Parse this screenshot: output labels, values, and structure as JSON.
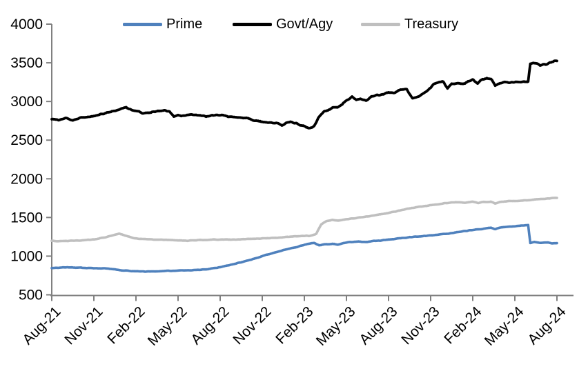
{
  "chart_data": {
    "type": "line",
    "title": "",
    "background": "#FFFFFF",
    "text_color": "#000000",
    "axis_color": "#808080",
    "legend": {
      "position": "top"
    },
    "x_axis": {
      "unit": "months since Aug-21",
      "range_months": [
        0,
        36
      ],
      "tick_positions_months": [
        0,
        3,
        6,
        9,
        12,
        15,
        18,
        21,
        24,
        27,
        30,
        33,
        36
      ],
      "tick_labels": [
        "Aug-21",
        "Nov-21",
        "Feb-22",
        "May-22",
        "Aug-22",
        "Nov-22",
        "Feb-23",
        "May-23",
        "Aug-23",
        "Nov-23",
        "Feb-24",
        "May-24",
        "Aug-24"
      ]
    },
    "y_axis": {
      "min": 500,
      "max": 4000,
      "tick_step": 500,
      "tick_labels": [
        "500",
        "1000",
        "1500",
        "2000",
        "2500",
        "3000",
        "3500",
        "4000"
      ]
    },
    "series": [
      {
        "name": "Prime",
        "color": "#4F81BD",
        "points": [
          [
            0,
            848
          ],
          [
            1,
            855
          ],
          [
            2,
            850
          ],
          [
            3,
            845
          ],
          [
            4,
            840
          ],
          [
            4.5,
            830
          ],
          [
            5,
            815
          ],
          [
            6,
            805
          ],
          [
            7,
            800
          ],
          [
            8,
            808
          ],
          [
            9,
            813
          ],
          [
            10,
            818
          ],
          [
            11,
            828
          ],
          [
            12,
            858
          ],
          [
            12.5,
            878
          ],
          [
            13,
            898
          ],
          [
            13.5,
            922
          ],
          [
            14,
            945
          ],
          [
            14.5,
            972
          ],
          [
            15,
            1000
          ],
          [
            15.5,
            1028
          ],
          [
            16,
            1052
          ],
          [
            16.5,
            1075
          ],
          [
            17,
            1098
          ],
          [
            17.5,
            1120
          ],
          [
            18,
            1148
          ],
          [
            18.35,
            1163
          ],
          [
            18.7,
            1170
          ],
          [
            19.05,
            1140
          ],
          [
            19.4,
            1150
          ],
          [
            20,
            1158
          ],
          [
            20.4,
            1152
          ],
          [
            21,
            1178
          ],
          [
            21.5,
            1183
          ],
          [
            22,
            1188
          ],
          [
            22.5,
            1184
          ],
          [
            23,
            1198
          ],
          [
            23.5,
            1204
          ],
          [
            24,
            1214
          ],
          [
            24.5,
            1224
          ],
          [
            25,
            1234
          ],
          [
            25.5,
            1244
          ],
          [
            26,
            1252
          ],
          [
            26.5,
            1260
          ],
          [
            27,
            1268
          ],
          [
            27.5,
            1278
          ],
          [
            28,
            1288
          ],
          [
            28.5,
            1298
          ],
          [
            29,
            1312
          ],
          [
            29.5,
            1326
          ],
          [
            30,
            1338
          ],
          [
            30.5,
            1348
          ],
          [
            31,
            1362
          ],
          [
            31.3,
            1368
          ],
          [
            31.6,
            1348
          ],
          [
            32,
            1372
          ],
          [
            32.5,
            1382
          ],
          [
            33,
            1383
          ],
          [
            33.3,
            1392
          ],
          [
            33.6,
            1398
          ],
          [
            33.95,
            1403
          ],
          [
            34.1,
            1170
          ],
          [
            34.4,
            1180
          ],
          [
            34.8,
            1172
          ],
          [
            35.2,
            1178
          ],
          [
            35.6,
            1168
          ],
          [
            36,
            1166
          ]
        ]
      },
      {
        "name": "Govt/Agy",
        "color": "#000000",
        "points": [
          [
            0,
            2775
          ],
          [
            0.5,
            2760
          ],
          [
            1,
            2785
          ],
          [
            1.5,
            2755
          ],
          [
            2,
            2790
          ],
          [
            2.5,
            2800
          ],
          [
            3,
            2815
          ],
          [
            3.5,
            2835
          ],
          [
            4,
            2855
          ],
          [
            4.5,
            2885
          ],
          [
            5,
            2910
          ],
          [
            5.3,
            2930
          ],
          [
            5.7,
            2885
          ],
          [
            6,
            2880
          ],
          [
            6.5,
            2845
          ],
          [
            7,
            2860
          ],
          [
            7.5,
            2875
          ],
          [
            8,
            2880
          ],
          [
            8.4,
            2870
          ],
          [
            8.7,
            2800
          ],
          [
            9,
            2820
          ],
          [
            9.5,
            2815
          ],
          [
            10,
            2830
          ],
          [
            10.5,
            2820
          ],
          [
            11,
            2810
          ],
          [
            11.5,
            2820
          ],
          [
            12,
            2825
          ],
          [
            12.5,
            2810
          ],
          [
            13,
            2800
          ],
          [
            13.5,
            2790
          ],
          [
            14,
            2780
          ],
          [
            14.5,
            2755
          ],
          [
            15,
            2735
          ],
          [
            15.5,
            2730
          ],
          [
            16,
            2720
          ],
          [
            16.4,
            2695
          ],
          [
            16.7,
            2725
          ],
          [
            17,
            2735
          ],
          [
            17.5,
            2710
          ],
          [
            18,
            2680
          ],
          [
            18.35,
            2655
          ],
          [
            18.7,
            2680
          ],
          [
            19,
            2790
          ],
          [
            19.4,
            2870
          ],
          [
            20,
            2915
          ],
          [
            20.4,
            2930
          ],
          [
            20.7,
            2960
          ],
          [
            21,
            3010
          ],
          [
            21.4,
            3065
          ],
          [
            21.7,
            3020
          ],
          [
            22,
            3030
          ],
          [
            22.4,
            3010
          ],
          [
            22.7,
            3050
          ],
          [
            23,
            3075
          ],
          [
            23.5,
            3090
          ],
          [
            24,
            3120
          ],
          [
            24.35,
            3110
          ],
          [
            24.7,
            3140
          ],
          [
            25,
            3155
          ],
          [
            25.3,
            3165
          ],
          [
            25.7,
            3040
          ],
          [
            26,
            3060
          ],
          [
            26.4,
            3090
          ],
          [
            26.8,
            3150
          ],
          [
            27.2,
            3220
          ],
          [
            27.6,
            3250
          ],
          [
            27.9,
            3255
          ],
          [
            28.2,
            3165
          ],
          [
            28.5,
            3230
          ],
          [
            28.9,
            3240
          ],
          [
            29.3,
            3225
          ],
          [
            29.6,
            3255
          ],
          [
            30,
            3285
          ],
          [
            30.35,
            3240
          ],
          [
            30.7,
            3290
          ],
          [
            31,
            3300
          ],
          [
            31.3,
            3290
          ],
          [
            31.6,
            3210
          ],
          [
            32,
            3240
          ],
          [
            32.5,
            3245
          ],
          [
            33,
            3250
          ],
          [
            33.5,
            3250
          ],
          [
            33.95,
            3255
          ],
          [
            34.1,
            3490
          ],
          [
            34.45,
            3500
          ],
          [
            34.8,
            3470
          ],
          [
            35.2,
            3480
          ],
          [
            35.65,
            3510
          ],
          [
            36,
            3525
          ]
        ]
      },
      {
        "name": "Treasury",
        "color": "#BFBFBF",
        "points": [
          [
            0,
            1198
          ],
          [
            0.5,
            1193
          ],
          [
            1,
            1196
          ],
          [
            2,
            1203
          ],
          [
            3,
            1216
          ],
          [
            3.5,
            1232
          ],
          [
            4,
            1252
          ],
          [
            4.5,
            1278
          ],
          [
            4.8,
            1292
          ],
          [
            5.2,
            1268
          ],
          [
            5.7,
            1242
          ],
          [
            6,
            1228
          ],
          [
            7,
            1218
          ],
          [
            8,
            1213
          ],
          [
            9,
            1204
          ],
          [
            9.6,
            1198
          ],
          [
            10,
            1204
          ],
          [
            11,
            1209
          ],
          [
            12,
            1217
          ],
          [
            13,
            1214
          ],
          [
            14,
            1221
          ],
          [
            15,
            1230
          ],
          [
            16,
            1238
          ],
          [
            17,
            1252
          ],
          [
            18,
            1260
          ],
          [
            18.55,
            1266
          ],
          [
            18.85,
            1290
          ],
          [
            19.2,
            1410
          ],
          [
            19.55,
            1450
          ],
          [
            20,
            1468
          ],
          [
            20.4,
            1458
          ],
          [
            21,
            1478
          ],
          [
            21.5,
            1488
          ],
          [
            22,
            1503
          ],
          [
            22.5,
            1513
          ],
          [
            23,
            1528
          ],
          [
            23.5,
            1543
          ],
          [
            24,
            1558
          ],
          [
            24.5,
            1578
          ],
          [
            25,
            1598
          ],
          [
            25.5,
            1616
          ],
          [
            26,
            1632
          ],
          [
            26.5,
            1645
          ],
          [
            27,
            1658
          ],
          [
            27.5,
            1670
          ],
          [
            28,
            1683
          ],
          [
            28.5,
            1693
          ],
          [
            29,
            1698
          ],
          [
            29.5,
            1693
          ],
          [
            30,
            1703
          ],
          [
            30.35,
            1688
          ],
          [
            30.7,
            1698
          ],
          [
            31,
            1700
          ],
          [
            31.3,
            1704
          ],
          [
            31.6,
            1678
          ],
          [
            32,
            1703
          ],
          [
            32.5,
            1710
          ],
          [
            33,
            1713
          ],
          [
            33.5,
            1718
          ],
          [
            34,
            1726
          ],
          [
            34.4,
            1733
          ],
          [
            34.8,
            1738
          ],
          [
            35.2,
            1740
          ],
          [
            35.6,
            1750
          ],
          [
            36,
            1756
          ]
        ]
      }
    ]
  }
}
